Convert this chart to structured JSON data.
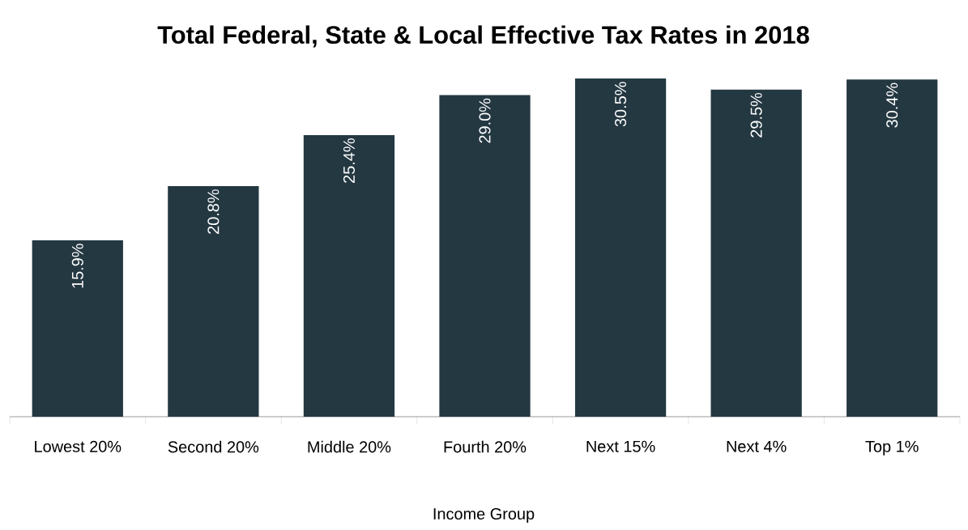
{
  "chart_data": {
    "type": "bar",
    "title": "Total Federal, State & Local Effective Tax Rates in 2018",
    "xlabel": "Income Group",
    "categories": [
      "Lowest 20%",
      "Second 20%",
      "Middle 20%",
      "Fourth 20%",
      "Next 15%",
      "Next 4%",
      "Top 1%"
    ],
    "values": [
      15.9,
      20.8,
      25.4,
      29.0,
      30.5,
      29.5,
      30.4
    ],
    "value_labels": [
      "15.9%",
      "20.8%",
      "25.4%",
      "29.0%",
      "30.5%",
      "29.5%",
      "30.4%"
    ],
    "color": "#243842",
    "grid": false
  }
}
